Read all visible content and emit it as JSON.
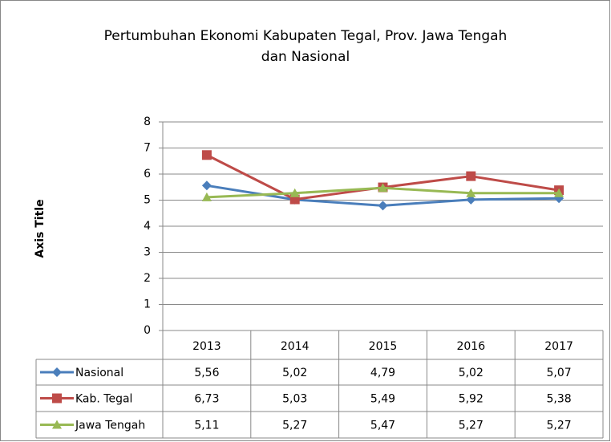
{
  "chart_data": {
    "type": "line",
    "title": [
      "Pertumbuhan Ekonomi Kabupaten Tegal, Prov. Jawa Tengah",
      "dan Nasional"
    ],
    "y_axis_label": "Axis Title",
    "categories": [
      "2013",
      "2014",
      "2015",
      "2016",
      "2017"
    ],
    "series": [
      {
        "name": "Nasional",
        "color": "#4a7ebb",
        "marker": "diamond",
        "values": [
          5.56,
          5.02,
          4.79,
          5.02,
          5.07
        ],
        "value_labels": [
          "5,56",
          "5,02",
          "4,79",
          "5,02",
          "5,07"
        ]
      },
      {
        "name": "Kab. Tegal",
        "color": "#be4b48",
        "marker": "square",
        "values": [
          6.73,
          5.03,
          5.49,
          5.92,
          5.38
        ],
        "value_labels": [
          "6,73",
          "5,03",
          "5,49",
          "5,92",
          "5,38"
        ]
      },
      {
        "name": "Jawa Tengah",
        "color": "#98b954",
        "marker": "triangle",
        "values": [
          5.11,
          5.27,
          5.47,
          5.27,
          5.27
        ],
        "value_labels": [
          "5,11",
          "5,27",
          "5,47",
          "5,27",
          "5,27"
        ]
      }
    ],
    "ylim": [
      0,
      8
    ],
    "yticks": [
      0,
      1,
      2,
      3,
      4,
      5,
      6,
      7,
      8
    ],
    "grid": true
  }
}
